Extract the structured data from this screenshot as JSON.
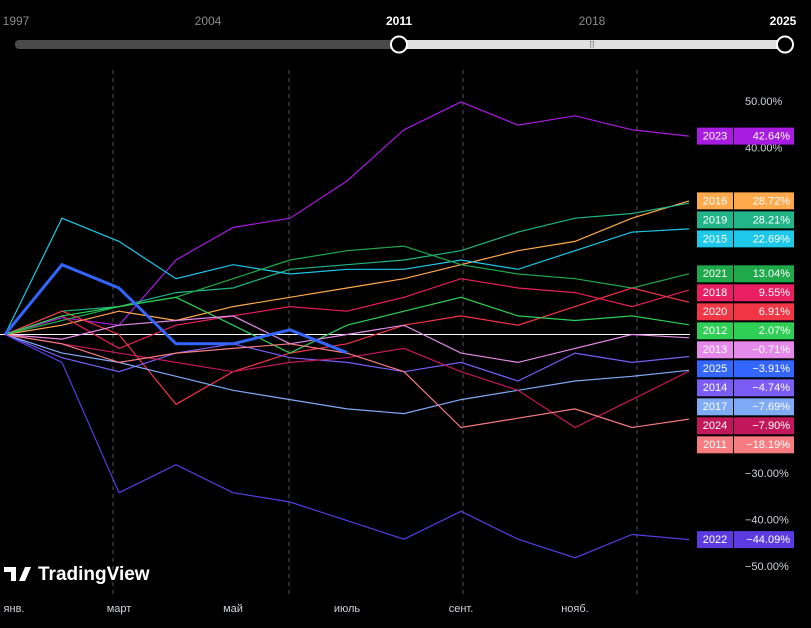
{
  "timeline": {
    "labels": [
      "1997",
      "2004",
      "2011",
      "2018",
      "2025"
    ]
  },
  "watermark": "TradingView",
  "chart_data": {
    "type": "line",
    "categories": [
      "янв.",
      null,
      "март",
      null,
      "май",
      null,
      "июль",
      null,
      "сент.",
      null,
      "нояб.",
      null,
      null
    ],
    "ylim": [
      -56,
      59
    ],
    "yticks": [
      {
        "value": 50,
        "label": "50.00%"
      },
      {
        "value": 40,
        "label": "40.00%"
      },
      {
        "value": -30,
        "label": "−30.00%"
      },
      {
        "value": -40,
        "label": "−40.00%"
      },
      {
        "value": -50,
        "label": "−50.00%"
      }
    ],
    "series": [
      {
        "name": "2023",
        "color": "#a81be0",
        "values": [
          0,
          3.6,
          2,
          16,
          23,
          25,
          33,
          44,
          50,
          45,
          47,
          44,
          42.64
        ],
        "value_labels": [
          null,
          null,
          null,
          null,
          null,
          null,
          null,
          null,
          null,
          null,
          null,
          null,
          "42.64%"
        ]
      },
      {
        "name": "2016",
        "color": "#ffa94d",
        "values": [
          0,
          2,
          5,
          3,
          6,
          8,
          10,
          12,
          15,
          18,
          20,
          25,
          28.72
        ],
        "value_labels": [
          null,
          null,
          null,
          null,
          null,
          null,
          null,
          null,
          null,
          null,
          null,
          null,
          "28.72%"
        ]
      },
      {
        "name": "2019",
        "color": "#22b58a",
        "values": [
          0,
          5,
          6,
          9,
          10,
          14,
          15,
          16,
          18,
          22,
          25,
          26,
          28.21
        ],
        "value_labels": [
          null,
          null,
          null,
          null,
          null,
          null,
          null,
          null,
          null,
          null,
          null,
          null,
          "28.21%"
        ]
      },
      {
        "name": "2015",
        "color": "#1ec8e8",
        "values": [
          0,
          25,
          20,
          12,
          15,
          13,
          14,
          14,
          16,
          14,
          18,
          22,
          22.69
        ],
        "value_labels": [
          null,
          null,
          null,
          null,
          null,
          null,
          null,
          null,
          null,
          null,
          null,
          null,
          "22.69%"
        ]
      },
      {
        "name": "2021",
        "color": "#1fa94a",
        "values": [
          0,
          3,
          6,
          8,
          12,
          16,
          18,
          19,
          15,
          13,
          12,
          10,
          13.04
        ],
        "value_labels": [
          null,
          null,
          null,
          null,
          null,
          null,
          null,
          null,
          null,
          null,
          null,
          null,
          "13.04%"
        ]
      },
      {
        "name": "2018",
        "color": "#e91e63",
        "values": [
          0,
          4,
          -3,
          2,
          4,
          6,
          5,
          8,
          12,
          10,
          9,
          6,
          9.55
        ],
        "value_labels": [
          null,
          null,
          null,
          null,
          null,
          null,
          null,
          null,
          null,
          null,
          null,
          null,
          "9.55%"
        ]
      },
      {
        "name": "2020",
        "color": "#f23645",
        "values": [
          0,
          5,
          0,
          -15,
          -8,
          -4,
          -2,
          2,
          4,
          2,
          6,
          10,
          6.91
        ],
        "value_labels": [
          null,
          null,
          null,
          null,
          null,
          null,
          null,
          null,
          null,
          null,
          null,
          null,
          "6.91%"
        ]
      },
      {
        "name": "2012",
        "color": "#2fcf55",
        "values": [
          0,
          4,
          6,
          8,
          2,
          -4,
          2,
          5,
          8,
          4,
          3,
          4,
          2.07
        ],
        "value_labels": [
          null,
          null,
          null,
          null,
          null,
          null,
          null,
          null,
          null,
          null,
          null,
          null,
          "2.07%"
        ]
      },
      {
        "name": "2013",
        "color": "#e58ae8",
        "values": [
          0,
          -1,
          2,
          3,
          4,
          -2,
          0,
          2,
          -4,
          -6,
          -3,
          0,
          -0.71
        ],
        "value_labels": [
          null,
          null,
          null,
          null,
          null,
          null,
          null,
          null,
          null,
          null,
          null,
          null,
          "−0.71%"
        ]
      },
      {
        "name": "2014",
        "color": "#7b5cf5",
        "values": [
          0,
          -5,
          -8,
          -4,
          -2,
          -5,
          -6,
          -8,
          -6,
          -10,
          -4,
          -6,
          -4.74
        ],
        "value_labels": [
          null,
          null,
          null,
          null,
          null,
          null,
          null,
          null,
          null,
          null,
          null,
          null,
          "−4.74%"
        ]
      },
      {
        "name": "2017",
        "color": "#7faaf5",
        "values": [
          0,
          -4,
          -6,
          -9,
          -12,
          -14,
          -16,
          -17,
          -14,
          -12,
          -10,
          -9,
          -7.69
        ],
        "value_labels": [
          null,
          null,
          null,
          null,
          null,
          null,
          null,
          null,
          null,
          null,
          null,
          null,
          "−7.69%"
        ]
      },
      {
        "name": "2024",
        "color": "#c2185b",
        "values": [
          0,
          -2,
          -4,
          -6,
          -8,
          -6,
          -5,
          -3,
          -8,
          -12,
          -20,
          -14,
          -7.9
        ],
        "value_labels": [
          null,
          null,
          null,
          null,
          null,
          null,
          null,
          null,
          null,
          null,
          null,
          null,
          "−7.90%"
        ]
      },
      {
        "name": "2011",
        "color": "#f77c80",
        "values": [
          0,
          -2,
          -6,
          -4,
          -3,
          -2,
          -4,
          -8,
          -20,
          -18,
          -16,
          -20,
          -18.19
        ],
        "value_labels": [
          null,
          null,
          null,
          null,
          null,
          null,
          null,
          null,
          null,
          null,
          null,
          null,
          "−18.19%"
        ]
      },
      {
        "name": "2022",
        "color": "#5b3ae0",
        "values": [
          0,
          -6,
          -34,
          -28,
          -34,
          -36,
          -40,
          -44,
          -38,
          -44,
          -48,
          -43,
          -44.09
        ],
        "value_labels": [
          null,
          null,
          null,
          null,
          null,
          null,
          null,
          null,
          null,
          null,
          null,
          null,
          "−44.09%"
        ]
      },
      {
        "name": "2025",
        "color": "#3366ff",
        "values": [
          0,
          15,
          10,
          -2,
          -2,
          1,
          -3.91,
          null,
          null,
          null,
          null,
          null,
          null
        ],
        "value_labels": [
          null,
          null,
          null,
          null,
          null,
          null,
          "−3.91%",
          null,
          null,
          null,
          null,
          null,
          null
        ]
      }
    ]
  }
}
